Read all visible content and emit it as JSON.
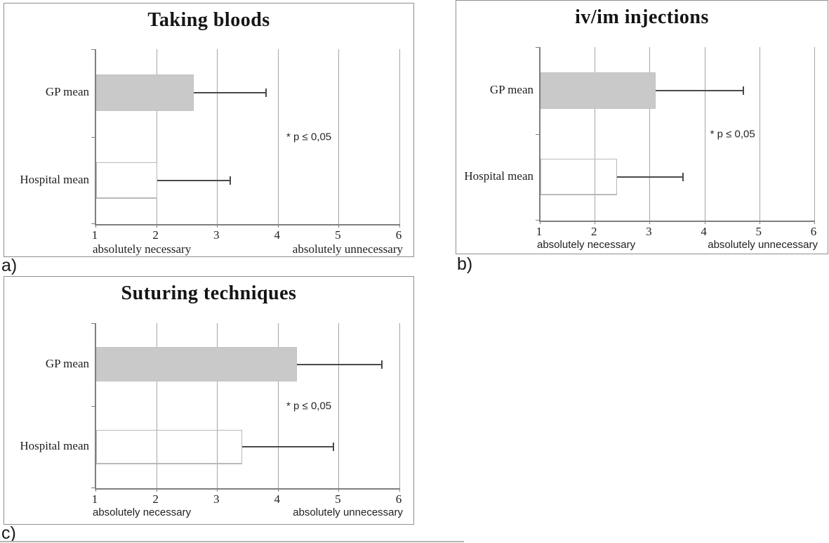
{
  "figure": {
    "panel_labels": [
      "a)",
      "b)",
      "c)"
    ]
  },
  "chart_data": [
    {
      "type": "bar",
      "orientation": "horizontal",
      "panel_label": "a)",
      "title": "Taking bloods",
      "categories": [
        "GP mean",
        "Hospital mean"
      ],
      "values": [
        2.6,
        2.0
      ],
      "error_high": [
        3.8,
        3.2
      ],
      "bar_styles": [
        "gp",
        "hospital"
      ],
      "bar_colors": [
        "#c9c9c9",
        "#ffffff"
      ],
      "annotation": "* p ≤ 0,05",
      "annotation_x": 4.5,
      "annotation_y_frac": 0.5,
      "x_ticks": [
        1,
        2,
        3,
        4,
        5,
        6
      ],
      "xlim": [
        1,
        6
      ],
      "x_left_label": "absolutely necessary",
      "x_right_label": "absolutely unnecessary",
      "grid": "vertical",
      "legend": "none"
    },
    {
      "type": "bar",
      "orientation": "horizontal",
      "panel_label": "b)",
      "title": "iv/im injections",
      "categories": [
        "GP mean",
        "Hospital mean"
      ],
      "values": [
        3.1,
        2.4
      ],
      "error_high": [
        4.7,
        3.6
      ],
      "bar_styles": [
        "gp",
        "hospital"
      ],
      "bar_colors": [
        "#c9c9c9",
        "#ffffff"
      ],
      "annotation": "* p ≤ 0,05",
      "annotation_x": 4.5,
      "annotation_y_frac": 0.5,
      "x_ticks": [
        1,
        2,
        3,
        4,
        5,
        6
      ],
      "xlim": [
        1,
        6
      ],
      "x_left_label": "absolutely necessary",
      "x_right_label": "absolutely unnecessary",
      "grid": "vertical",
      "legend": "none"
    },
    {
      "type": "bar",
      "orientation": "horizontal",
      "panel_label": "c)",
      "title": "Suturing techniques",
      "categories": [
        "GP mean",
        "Hospital mean"
      ],
      "values": [
        4.3,
        3.4
      ],
      "error_high": [
        5.7,
        4.9
      ],
      "bar_styles": [
        "gp",
        "hospital"
      ],
      "bar_colors": [
        "#c9c9c9",
        "#ffffff"
      ],
      "annotation": "* p ≤ 0,05",
      "annotation_x": 4.5,
      "annotation_y_frac": 0.5,
      "x_ticks": [
        1,
        2,
        3,
        4,
        5,
        6
      ],
      "xlim": [
        1,
        6
      ],
      "x_left_label": "absolutely necessary",
      "x_right_label": "absolutely unnecessary",
      "grid": "vertical",
      "legend": "none"
    }
  ]
}
